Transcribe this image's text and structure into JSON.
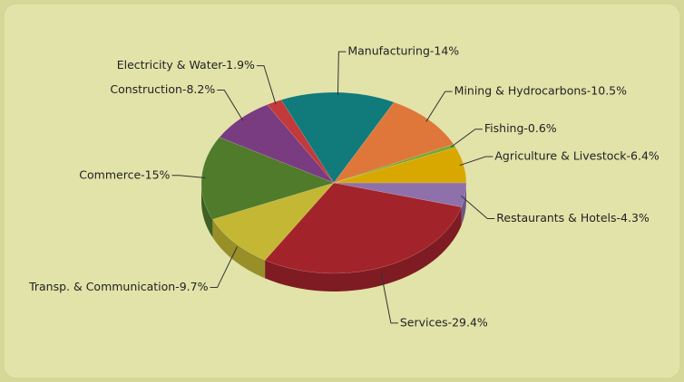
{
  "chart_data": {
    "type": "pie",
    "values": [
      4.3,
      29.4,
      9.7,
      15,
      8.2,
      1.9,
      14,
      10.5,
      0.6,
      6.4
    ],
    "value_labels": [
      "Restaurants & Hotels-4.3%",
      "Services-29.4%",
      "Transp. & Communication-9.7%",
      "Commerce-15%",
      "Construction-8.2%",
      "Electricity & Water-1.9%",
      "Manufacturing-14%",
      "Mining & Hydrocarbons-10.5%",
      "Fishing-0.6%",
      "Agriculture & Livestock-6.4%"
    ],
    "colors": [
      "#8e70aa",
      "#a3232b",
      "#c3b734",
      "#4f7b2b",
      "#7a3c80",
      "#c23a3c",
      "#117a7a",
      "#df773a",
      "#78a832",
      "#d9a800"
    ]
  }
}
